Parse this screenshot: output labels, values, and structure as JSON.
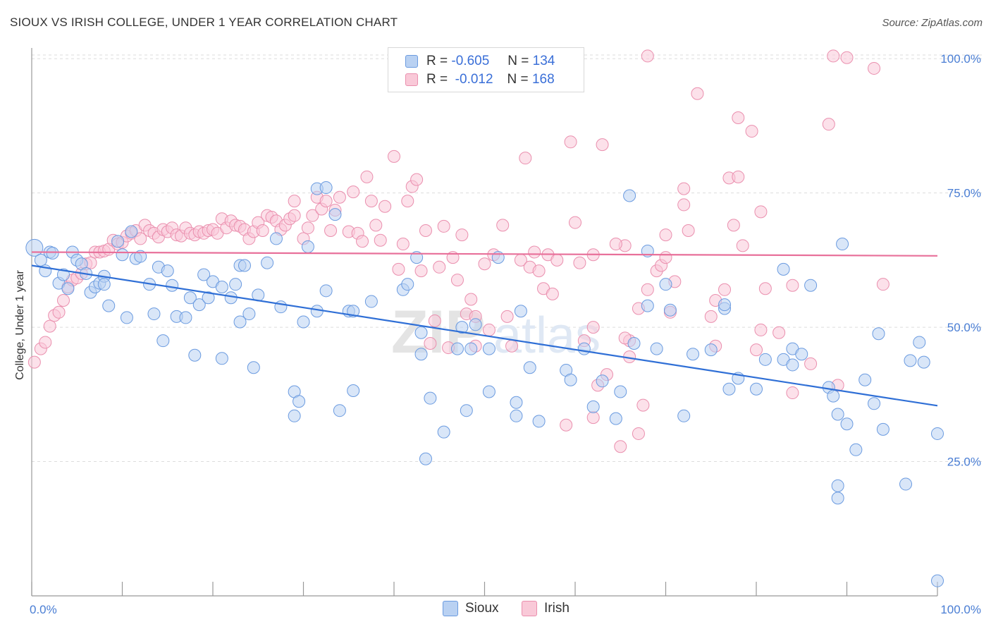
{
  "title": "SIOUX VS IRISH COLLEGE, UNDER 1 YEAR CORRELATION CHART",
  "source": "Source: ZipAtlas.com",
  "watermark": "ZIPatlas",
  "legend": {
    "rows": [
      {
        "r_label": "R =",
        "r_value": "-0.605",
        "n_label": "N =",
        "n_value": "134"
      },
      {
        "r_label": "R =",
        "r_value": "-0.012",
        "n_label": "N =",
        "n_value": "168"
      }
    ]
  },
  "bottom_legend": {
    "sioux": "Sioux",
    "irish": "Irish"
  },
  "colors": {
    "sioux_fill": "#b9d1f2",
    "sioux_stroke": "#6b9be0",
    "sioux_line": "#2f6fd6",
    "irish_fill": "#f9c9d8",
    "irish_stroke": "#ea8fae",
    "irish_line": "#e8709a",
    "tick_label": "#4a7ed4",
    "grid": "#dddddd"
  },
  "chart_data": {
    "type": "scatter",
    "title": "SIOUX VS IRISH COLLEGE, UNDER 1 YEAR CORRELATION CHART",
    "xlabel": "",
    "ylabel": "College, Under 1 year",
    "xlim": [
      0,
      100
    ],
    "ylim": [
      0,
      102
    ],
    "x_tick_labels": [
      "0.0%",
      "100.0%"
    ],
    "y_ticks": [
      25,
      50,
      75,
      100
    ],
    "y_tick_labels": [
      "25.0%",
      "50.0%",
      "75.0%",
      "100.0%"
    ],
    "grid": "horizontal dashed",
    "legend_position": "top-center",
    "series": [
      {
        "name": "Sioux",
        "r": -0.605,
        "n": 134,
        "trend": {
          "x": [
            0,
            100
          ],
          "y": [
            61.5,
            35.4
          ]
        },
        "points": [
          [
            0.3,
            64.8
          ],
          [
            1,
            62.5
          ],
          [
            1.5,
            60.5
          ],
          [
            2,
            64
          ],
          [
            2.3,
            63.8
          ],
          [
            3,
            58.2
          ],
          [
            3.5,
            59.8
          ],
          [
            4,
            57.2
          ],
          [
            4.5,
            64
          ],
          [
            5,
            62.5
          ],
          [
            5.5,
            61.8
          ],
          [
            6,
            60
          ],
          [
            6.5,
            56.5
          ],
          [
            7,
            57.5
          ],
          [
            7.5,
            58.2
          ],
          [
            8,
            59.5
          ],
          [
            8,
            58
          ],
          [
            8.5,
            54
          ],
          [
            9.5,
            66
          ],
          [
            10,
            63.5
          ],
          [
            10.5,
            51.8
          ],
          [
            11,
            67.8
          ],
          [
            11.5,
            62.8
          ],
          [
            12,
            63.2
          ],
          [
            13,
            58
          ],
          [
            13.5,
            52.5
          ],
          [
            14,
            61.2
          ],
          [
            14.5,
            47.5
          ],
          [
            15,
            60.5
          ],
          [
            15.5,
            57.8
          ],
          [
            16,
            52
          ],
          [
            17,
            51.8
          ],
          [
            17.5,
            55.5
          ],
          [
            18,
            44.8
          ],
          [
            18.5,
            54.2
          ],
          [
            19,
            59.8
          ],
          [
            19.5,
            55.5
          ],
          [
            20,
            58.5
          ],
          [
            21,
            57.5
          ],
          [
            21,
            44.2
          ],
          [
            22,
            55.5
          ],
          [
            22.5,
            58
          ],
          [
            23,
            61.5
          ],
          [
            23.5,
            61.5
          ],
          [
            23,
            51
          ],
          [
            24,
            52.5
          ],
          [
            24.5,
            42.5
          ],
          [
            25,
            56
          ],
          [
            26,
            62
          ],
          [
            27,
            66.5
          ],
          [
            27.5,
            53.8
          ],
          [
            29,
            38
          ],
          [
            29,
            33.5
          ],
          [
            29.5,
            36.2
          ],
          [
            30,
            51
          ],
          [
            30.5,
            65
          ],
          [
            31.5,
            53
          ],
          [
            31.5,
            75.8
          ],
          [
            32.5,
            56.8
          ],
          [
            32.5,
            76
          ],
          [
            33.5,
            71
          ],
          [
            34,
            34.5
          ],
          [
            35,
            53
          ],
          [
            35.5,
            38.2
          ],
          [
            35.5,
            53
          ],
          [
            37.5,
            54.8
          ],
          [
            41,
            57
          ],
          [
            41.5,
            58
          ],
          [
            42.5,
            63
          ],
          [
            43,
            49
          ],
          [
            43,
            45
          ],
          [
            43.5,
            25.5
          ],
          [
            44,
            36.8
          ],
          [
            45.5,
            30.5
          ],
          [
            47,
            46
          ],
          [
            47.5,
            50
          ],
          [
            48,
            34.5
          ],
          [
            48.5,
            46
          ],
          [
            49,
            50.5
          ],
          [
            50.5,
            38
          ],
          [
            50.5,
            46
          ],
          [
            51.5,
            63
          ],
          [
            53.5,
            33.5
          ],
          [
            53.5,
            36
          ],
          [
            54,
            53
          ],
          [
            55,
            42.5
          ],
          [
            56,
            32.5
          ],
          [
            59,
            42
          ],
          [
            59.5,
            40.2
          ],
          [
            61,
            46
          ],
          [
            62,
            35.2
          ],
          [
            63,
            40
          ],
          [
            64.5,
            33
          ],
          [
            65,
            38
          ],
          [
            66,
            74.5
          ],
          [
            66.5,
            47
          ],
          [
            68,
            54
          ],
          [
            68,
            64.2
          ],
          [
            69,
            46
          ],
          [
            70,
            58
          ],
          [
            70.5,
            53.2
          ],
          [
            72,
            33.5
          ],
          [
            73,
            45
          ],
          [
            75,
            45.8
          ],
          [
            76.5,
            53.5
          ],
          [
            76.5,
            54.2
          ],
          [
            77,
            38.5
          ],
          [
            78,
            40.5
          ],
          [
            80,
            38.5
          ],
          [
            81,
            44
          ],
          [
            83,
            44
          ],
          [
            83,
            60.8
          ],
          [
            84,
            46
          ],
          [
            84,
            43
          ],
          [
            85,
            45
          ],
          [
            86,
            57.8
          ],
          [
            88,
            38.8
          ],
          [
            88.5,
            37.2
          ],
          [
            89.5,
            65.5
          ],
          [
            89,
            20.5
          ],
          [
            89,
            33.8
          ],
          [
            89,
            18.2
          ],
          [
            90,
            32
          ],
          [
            91,
            27.2
          ],
          [
            92,
            40.2
          ],
          [
            93,
            35.8
          ],
          [
            93.5,
            48.8
          ],
          [
            94,
            31
          ],
          [
            96.5,
            20.8
          ],
          [
            97,
            43.8
          ],
          [
            98,
            47.2
          ],
          [
            100,
            30.2
          ],
          [
            100,
            2.8
          ],
          [
            98.5,
            43.5
          ]
        ]
      },
      {
        "name": "Irish",
        "r": -0.012,
        "n": 168,
        "trend": {
          "x": [
            0,
            100
          ],
          "y": [
            64.0,
            63.3
          ]
        },
        "points": [
          [
            0.3,
            43.5
          ],
          [
            1,
            46
          ],
          [
            1.5,
            47.2
          ],
          [
            2,
            50.2
          ],
          [
            2.5,
            52.2
          ],
          [
            3,
            52.8
          ],
          [
            3.5,
            55
          ],
          [
            4,
            57.5
          ],
          [
            4.5,
            58.8
          ],
          [
            5,
            59.2
          ],
          [
            5.5,
            60
          ],
          [
            6,
            61.8
          ],
          [
            6.5,
            62
          ],
          [
            7,
            64
          ],
          [
            7.5,
            64
          ],
          [
            8,
            64.2
          ],
          [
            8.5,
            64.5
          ],
          [
            9,
            66.2
          ],
          [
            9.5,
            65.5
          ],
          [
            10,
            65.8
          ],
          [
            10.5,
            67
          ],
          [
            11,
            67.5
          ],
          [
            11.5,
            68
          ],
          [
            12,
            66.5
          ],
          [
            12.5,
            69
          ],
          [
            13,
            68
          ],
          [
            13.5,
            67.5
          ],
          [
            14,
            66.8
          ],
          [
            14.5,
            68.2
          ],
          [
            15,
            67.8
          ],
          [
            15.5,
            68.5
          ],
          [
            16,
            67.2
          ],
          [
            16.5,
            67
          ],
          [
            17,
            68.5
          ],
          [
            17.5,
            67.5
          ],
          [
            18,
            67.2
          ],
          [
            18.5,
            67.8
          ],
          [
            19,
            67.5
          ],
          [
            19.5,
            68
          ],
          [
            20,
            68.2
          ],
          [
            20.5,
            67.5
          ],
          [
            21,
            70.2
          ],
          [
            21.5,
            68.5
          ],
          [
            22,
            69.8
          ],
          [
            22.5,
            69
          ],
          [
            23,
            68.8
          ],
          [
            23.5,
            68.2
          ],
          [
            24,
            66.5
          ],
          [
            24.5,
            67.8
          ],
          [
            25,
            69.5
          ],
          [
            25.5,
            68
          ],
          [
            26,
            70.8
          ],
          [
            26.5,
            70.5
          ],
          [
            27,
            69.8
          ],
          [
            27.5,
            68.2
          ],
          [
            28,
            69
          ],
          [
            28.5,
            70.2
          ],
          [
            29,
            70.8
          ],
          [
            29,
            73.5
          ],
          [
            30,
            66.5
          ],
          [
            30.5,
            68.5
          ],
          [
            31,
            70.8
          ],
          [
            31.5,
            74.2
          ],
          [
            32,
            72
          ],
          [
            32.5,
            73.5
          ],
          [
            33,
            68
          ],
          [
            33.5,
            71.8
          ],
          [
            34,
            74.2
          ],
          [
            35,
            67.8
          ],
          [
            35.5,
            75.2
          ],
          [
            36,
            67.5
          ],
          [
            36.5,
            66
          ],
          [
            37,
            78
          ],
          [
            37.5,
            73.5
          ],
          [
            38,
            69
          ],
          [
            38.5,
            66.2
          ],
          [
            39,
            72.5
          ],
          [
            40,
            81.8
          ],
          [
            40.5,
            60.8
          ],
          [
            41,
            65.5
          ],
          [
            41.5,
            73.5
          ],
          [
            42,
            76.2
          ],
          [
            42.5,
            77.5
          ],
          [
            43,
            60.5
          ],
          [
            43.5,
            68
          ],
          [
            44,
            47
          ],
          [
            44.5,
            51.2
          ],
          [
            45,
            61.2
          ],
          [
            45.5,
            68.8
          ],
          [
            46,
            46.2
          ],
          [
            46.5,
            63
          ],
          [
            47,
            58.8
          ],
          [
            47.5,
            67.2
          ],
          [
            48,
            52.5
          ],
          [
            48.5,
            55.2
          ],
          [
            49,
            52
          ],
          [
            49,
            46.5
          ],
          [
            50,
            61.8
          ],
          [
            50.5,
            49.5
          ],
          [
            51,
            63.5
          ],
          [
            52,
            69
          ],
          [
            52.5,
            52
          ],
          [
            53,
            46.5
          ],
          [
            54,
            62.5
          ],
          [
            54.5,
            81.5
          ],
          [
            55,
            61.2
          ],
          [
            55.5,
            64
          ],
          [
            56,
            60.5
          ],
          [
            56.5,
            57.2
          ],
          [
            57,
            63.5
          ],
          [
            57.5,
            56.2
          ],
          [
            58,
            62.5
          ],
          [
            59,
            31.8
          ],
          [
            59.5,
            84.5
          ],
          [
            60,
            69.5
          ],
          [
            60.5,
            62
          ],
          [
            61,
            47.5
          ],
          [
            62,
            33.2
          ],
          [
            62,
            50
          ],
          [
            62.5,
            39.2
          ],
          [
            63,
            84
          ],
          [
            63.5,
            41.2
          ],
          [
            65,
            27.8
          ],
          [
            65.5,
            65.2
          ],
          [
            66,
            47.5
          ],
          [
            67,
            30.2
          ],
          [
            67.5,
            35.5
          ],
          [
            68,
            57
          ],
          [
            69,
            60.5
          ],
          [
            69.5,
            61.5
          ],
          [
            70,
            67.2
          ],
          [
            70.5,
            52.8
          ],
          [
            71,
            58.5
          ],
          [
            72,
            75.8
          ],
          [
            72,
            72.8
          ],
          [
            72.5,
            68
          ],
          [
            73.5,
            93.5
          ],
          [
            75,
            52
          ],
          [
            75.5,
            55
          ],
          [
            76.5,
            57
          ],
          [
            77,
            77.8
          ],
          [
            77.5,
            69
          ],
          [
            78,
            89
          ],
          [
            78.5,
            65.2
          ],
          [
            79.5,
            86.5
          ],
          [
            80,
            45.8
          ],
          [
            80.5,
            71.5
          ],
          [
            81,
            57.2
          ],
          [
            82.5,
            49
          ],
          [
            84,
            37.8
          ],
          [
            84,
            57.8
          ],
          [
            86,
            43.2
          ],
          [
            88,
            87.8
          ],
          [
            88.5,
            100.5
          ],
          [
            89,
            39.2
          ],
          [
            90,
            100.2
          ],
          [
            93,
            98.2
          ],
          [
            94,
            58
          ],
          [
            68,
            100.5
          ],
          [
            64.5,
            65.5
          ],
          [
            65.5,
            48
          ],
          [
            66,
            44.5
          ],
          [
            75.5,
            46.5
          ],
          [
            80.5,
            49.5
          ],
          [
            78,
            78
          ],
          [
            70,
            63
          ],
          [
            62,
            63.5
          ],
          [
            67,
            53.5
          ]
        ]
      }
    ]
  }
}
